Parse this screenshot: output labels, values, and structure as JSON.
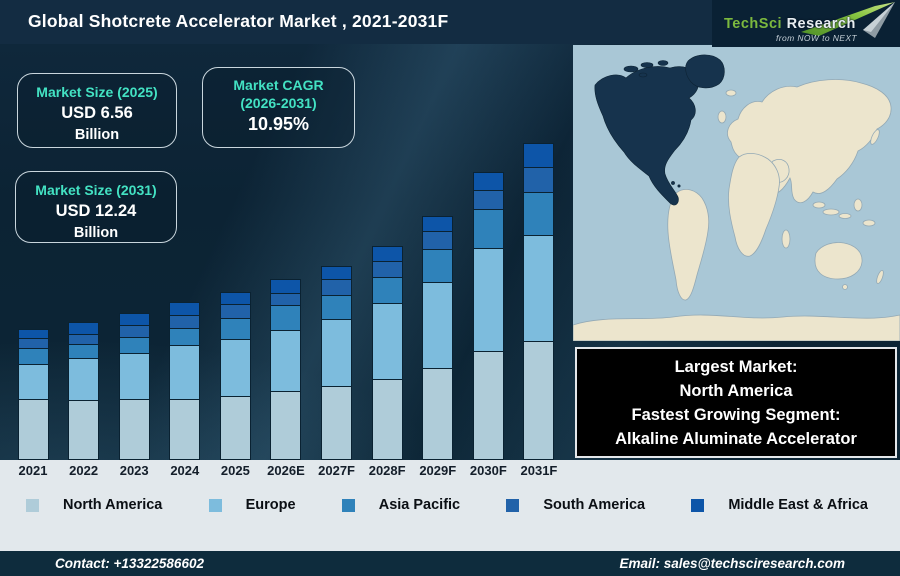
{
  "header": {
    "title": "Global Shotcrete Accelerator Market , 2021-2031F"
  },
  "logo": {
    "brand_primary": "TechSci",
    "brand_secondary": "Research",
    "tagline": "from NOW to NEXT",
    "arrow_color": "#76b82a"
  },
  "stat_boxes": [
    {
      "label": "Market Size (2025)",
      "value": "USD 6.56",
      "unit": "Billion"
    },
    {
      "label": "Market CAGR",
      "label2": "(2026-2031)",
      "value": "10.95%"
    },
    {
      "label": "Market Size (2031)",
      "value": "USD 12.24",
      "unit": "Billion"
    }
  ],
  "callout": {
    "lines": [
      "Largest Market:",
      "North America",
      "Fastest Growing Segment:",
      "Alkaline Aluminate Accelerator"
    ]
  },
  "map": {
    "highlighted_region": "North America",
    "ocean_color": "#a9c7d6",
    "land_color": "#ece5cd",
    "highlight_color": "#16334d"
  },
  "footer": {
    "contact": "Contact: +13322586602",
    "email": "Email: sales@techsciresearch.com"
  },
  "chart_data": {
    "type": "bar",
    "stacked": true,
    "title": "Global Shotcrete Accelerator Market , 2021-2031F",
    "unit": "USD Billion",
    "grid": false,
    "y_axis_visible": false,
    "ylim": [
      0,
      12.5
    ],
    "legend_position": "bottom",
    "categories": [
      "2021",
      "2022",
      "2023",
      "2024",
      "2025",
      "2026E",
      "2027F",
      "2028F",
      "2029F",
      "2030F",
      "2031F"
    ],
    "series": [
      {
        "name": "North America",
        "color": "#afccd9",
        "values": [
          2.32,
          2.3,
          2.32,
          2.32,
          2.43,
          2.62,
          2.82,
          3.09,
          3.51,
          4.17,
          4.56
        ]
      },
      {
        "name": "Europe",
        "color": "#7dbcdd",
        "values": [
          1.39,
          1.62,
          1.81,
          2.12,
          2.24,
          2.39,
          2.62,
          2.93,
          3.32,
          3.97,
          4.07
        ]
      },
      {
        "name": "Asia Pacific",
        "color": "#2f82ba",
        "values": [
          0.66,
          0.58,
          0.66,
          0.66,
          0.81,
          0.97,
          0.93,
          1.04,
          1.31,
          1.51,
          1.67
        ]
      },
      {
        "name": "South America",
        "color": "#2162a9",
        "values": [
          0.39,
          0.42,
          0.46,
          0.54,
          0.58,
          0.5,
          0.66,
          0.66,
          0.73,
          0.77,
          0.99
        ]
      },
      {
        "name": "Middle East & Africa",
        "color": "#0d55a8",
        "values": [
          0.39,
          0.5,
          0.5,
          0.54,
          0.5,
          0.58,
          0.54,
          0.62,
          0.58,
          0.73,
          0.95
        ]
      }
    ],
    "totals": [
      5.15,
      5.42,
      5.75,
      6.18,
      6.56,
      7.06,
      7.57,
      8.34,
      9.45,
      11.15,
      12.24
    ]
  }
}
